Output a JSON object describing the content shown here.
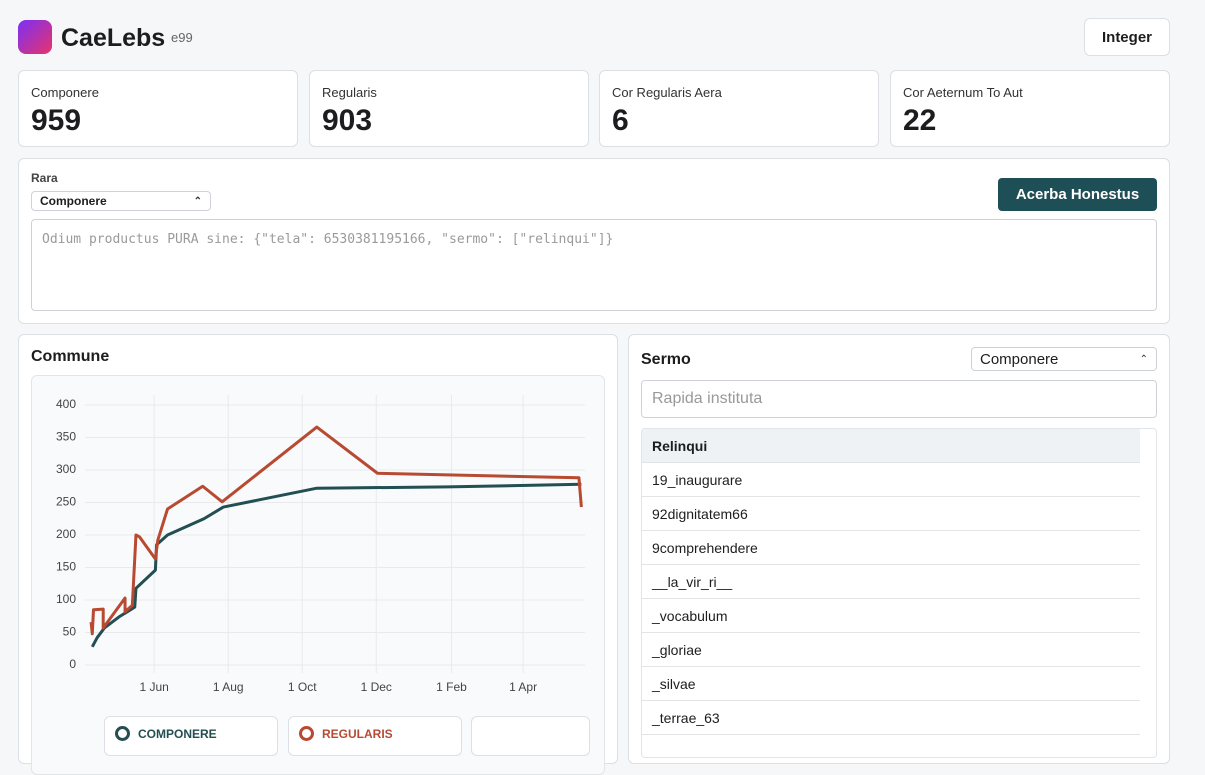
{
  "header": {
    "title": "CaeLebs",
    "badge": "e99",
    "button": "Integer"
  },
  "stats": [
    {
      "label": "Componere",
      "value": "959"
    },
    {
      "label": "Regularis",
      "value": "903"
    },
    {
      "label": "Cor Regularis Aera",
      "value": "6"
    },
    {
      "label": "Cor Aeternum To Aut",
      "value": "22"
    }
  ],
  "filter": {
    "label": "Rara",
    "select": "Componere",
    "button": "Acerba Honestus",
    "placeholder": "Odium productus PURA sine: {\"tela\": 6530381195166, \"sermo\": [\"relinqui\"]}"
  },
  "chart_data": {
    "type": "line",
    "title": "Commune",
    "xlim": [
      -57,
      355
    ],
    "ylim": [
      0,
      400
    ],
    "xticks": [
      {
        "value": 0,
        "label": "1 Jun"
      },
      {
        "value": 61,
        "label": "1 Aug"
      },
      {
        "value": 122,
        "label": "1 Oct"
      },
      {
        "value": 183,
        "label": "1 Dec"
      },
      {
        "value": 245,
        "label": "1 Feb"
      },
      {
        "value": 304,
        "label": "1 Apr"
      }
    ],
    "yticks": [
      0,
      50,
      100,
      150,
      200,
      250,
      300,
      350,
      400
    ],
    "grid": true,
    "series": [
      {
        "name": "COMPONERE",
        "color": "#234e52",
        "x": [
          -51,
          -47,
          -41,
          -29,
          -16,
          -15,
          1,
          2,
          11,
          41,
          57,
          134,
          242,
          352
        ],
        "values": [
          28,
          42,
          57,
          74,
          89,
          118,
          146,
          185,
          200,
          225,
          243,
          272,
          274,
          278
        ]
      },
      {
        "name": "REGULARIS",
        "color": "#b84a32",
        "x": [
          -52,
          -51,
          -50,
          -42,
          -42,
          -24,
          -24,
          -18,
          -15,
          -12,
          1,
          3,
          11,
          40,
          56,
          134,
          184,
          350,
          352
        ],
        "values": [
          66,
          48,
          85,
          86,
          57,
          103,
          82,
          92,
          200,
          197,
          163,
          192,
          240,
          275,
          251,
          366,
          295,
          288,
          243
        ]
      }
    ]
  },
  "table": {
    "title": "Sermo",
    "select": "Componere",
    "search": "Rapida instituta",
    "header": "Relinqui",
    "rows": [
      "19_inaugurare",
      "92dignitatem66",
      "9comprehendere",
      "__la_vir_ri__",
      "_vocabulum",
      "_gloriae",
      "_silvae",
      "_terrae_63"
    ]
  }
}
